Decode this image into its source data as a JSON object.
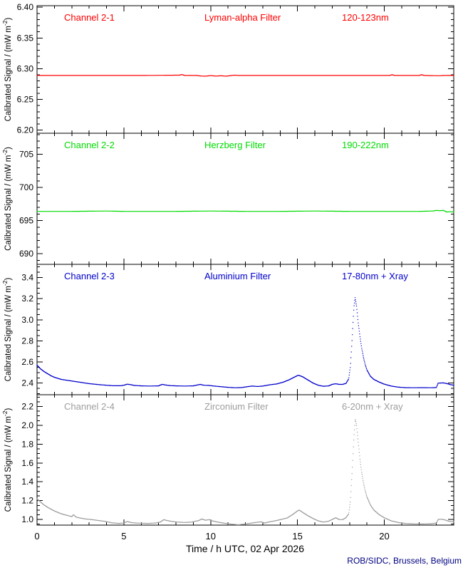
{
  "figure": {
    "footer": "ROB/SIDC, Brussels, Belgium",
    "footer_color": "#000080",
    "frame_color": "#000000",
    "y_axis_label": {
      "pre": "Calibrated Signal / (mW m",
      "sup": "-2",
      "post": ")"
    },
    "x_axis": {
      "title": "Time / h UTC, 02 Apr 2026",
      "min": 0,
      "max": 24,
      "minor_step": 1,
      "major_ticks": [
        0,
        5,
        10,
        15,
        20
      ],
      "tick_labels": [
        "0",
        "5",
        "10",
        "15",
        "20"
      ]
    }
  },
  "chart_data": [
    {
      "type": "line",
      "channel": "Channel 2-1",
      "filter": "Lyman-alpha Filter",
      "band": "120-123nm",
      "color": "#ff0000",
      "ylim": [
        6.195,
        6.4025
      ],
      "y_minor_step": 0.01,
      "y_ticks": [
        {
          "v": 6.2,
          "label": "6.20"
        },
        {
          "v": 6.25,
          "label": "6.25"
        },
        {
          "v": 6.3,
          "label": "6.30"
        },
        {
          "v": 6.35,
          "label": "6.35"
        },
        {
          "v": 6.4,
          "label": "6.40"
        }
      ],
      "points": [
        [
          0,
          6.289
        ],
        [
          3,
          6.289
        ],
        [
          6,
          6.289
        ],
        [
          8.2,
          6.2895
        ],
        [
          8.35,
          6.2905
        ],
        [
          8.5,
          6.289
        ],
        [
          9.2,
          6.289
        ],
        [
          9.4,
          6.2882
        ],
        [
          9.7,
          6.2878
        ],
        [
          10.0,
          6.2888
        ],
        [
          10.3,
          6.288
        ],
        [
          10.6,
          6.2885
        ],
        [
          10.9,
          6.2878
        ],
        [
          11.2,
          6.289
        ],
        [
          11.4,
          6.2895
        ],
        [
          11.6,
          6.289
        ],
        [
          13,
          6.289
        ],
        [
          15,
          6.289
        ],
        [
          17,
          6.289
        ],
        [
          19,
          6.289
        ],
        [
          20.3,
          6.289
        ],
        [
          20.45,
          6.2902
        ],
        [
          20.6,
          6.289
        ],
        [
          22.0,
          6.289
        ],
        [
          22.15,
          6.2902
        ],
        [
          22.3,
          6.289
        ],
        [
          23.2,
          6.2885
        ],
        [
          23.4,
          6.289
        ],
        [
          24,
          6.289
        ]
      ]
    },
    {
      "type": "line",
      "channel": "Channel 2-2",
      "filter": "Herzberg Filter",
      "band": "190-222nm",
      "color": "#00dc00",
      "ylim": [
        688.4,
        708.2
      ],
      "y_minor_step": 1,
      "y_ticks": [
        {
          "v": 690,
          "label": "690"
        },
        {
          "v": 695,
          "label": "695"
        },
        {
          "v": 700,
          "label": "700"
        },
        {
          "v": 705,
          "label": "705"
        }
      ],
      "points": [
        [
          0,
          696.4
        ],
        [
          2,
          696.4
        ],
        [
          4,
          696.45
        ],
        [
          5,
          696.4
        ],
        [
          8,
          696.4
        ],
        [
          10,
          696.45
        ],
        [
          12,
          696.4
        ],
        [
          14,
          696.4
        ],
        [
          16,
          696.45
        ],
        [
          18,
          696.4
        ],
        [
          20,
          696.4
        ],
        [
          22,
          696.4
        ],
        [
          22.8,
          696.45
        ],
        [
          23.0,
          696.55
        ],
        [
          23.2,
          696.5
        ],
        [
          23.4,
          696.55
        ],
        [
          23.6,
          696.3
        ],
        [
          23.8,
          696.35
        ],
        [
          24,
          696.3
        ]
      ]
    },
    {
      "type": "line",
      "channel": "Channel 2-3",
      "filter": "Aluminium Filter",
      "band": "17-80nm + Xray",
      "color": "#0000cc",
      "ylim": [
        2.29,
        3.525
      ],
      "y_minor_step": 0.05,
      "y_ticks": [
        {
          "v": 2.4,
          "label": "2.4"
        },
        {
          "v": 2.6,
          "label": "2.6"
        },
        {
          "v": 2.8,
          "label": "2.8"
        },
        {
          "v": 3.0,
          "label": "3.0"
        },
        {
          "v": 3.2,
          "label": "3.2"
        },
        {
          "v": 3.4,
          "label": "3.4"
        }
      ],
      "points": [
        [
          0,
          2.57
        ],
        [
          0.2,
          2.535
        ],
        [
          0.4,
          2.51
        ],
        [
          0.6,
          2.49
        ],
        [
          0.8,
          2.47
        ],
        [
          1.0,
          2.455
        ],
        [
          1.2,
          2.445
        ],
        [
          1.4,
          2.435
        ],
        [
          1.6,
          2.43
        ],
        [
          1.8,
          2.425
        ],
        [
          2.0,
          2.42
        ],
        [
          2.2,
          2.415
        ],
        [
          2.4,
          2.41
        ],
        [
          2.6,
          2.405
        ],
        [
          2.8,
          2.4
        ],
        [
          3.0,
          2.395
        ],
        [
          3.3,
          2.39
        ],
        [
          3.6,
          2.385
        ],
        [
          4.0,
          2.38
        ],
        [
          4.4,
          2.375
        ],
        [
          4.8,
          2.375
        ],
        [
          5.0,
          2.38
        ],
        [
          5.2,
          2.39
        ],
        [
          5.4,
          2.385
        ],
        [
          5.6,
          2.378
        ],
        [
          6.0,
          2.374
        ],
        [
          6.5,
          2.372
        ],
        [
          7.0,
          2.374
        ],
        [
          7.2,
          2.388
        ],
        [
          7.4,
          2.382
        ],
        [
          7.7,
          2.376
        ],
        [
          8.0,
          2.374
        ],
        [
          8.5,
          2.372
        ],
        [
          9.0,
          2.374
        ],
        [
          9.4,
          2.388
        ],
        [
          9.6,
          2.38
        ],
        [
          9.9,
          2.378
        ],
        [
          10.2,
          2.372
        ],
        [
          10.6,
          2.366
        ],
        [
          11.0,
          2.36
        ],
        [
          11.4,
          2.356
        ],
        [
          11.8,
          2.358
        ],
        [
          12.1,
          2.366
        ],
        [
          12.4,
          2.372
        ],
        [
          12.7,
          2.368
        ],
        [
          13.0,
          2.372
        ],
        [
          13.4,
          2.384
        ],
        [
          13.8,
          2.392
        ],
        [
          14.2,
          2.41
        ],
        [
          14.5,
          2.43
        ],
        [
          14.8,
          2.455
        ],
        [
          15.05,
          2.475
        ],
        [
          15.3,
          2.46
        ],
        [
          15.6,
          2.43
        ],
        [
          15.9,
          2.4
        ],
        [
          16.2,
          2.38
        ],
        [
          16.5,
          2.37
        ],
        [
          16.8,
          2.374
        ],
        [
          17.0,
          2.388
        ],
        [
          17.2,
          2.394
        ],
        [
          17.4,
          2.388
        ],
        [
          17.6,
          2.388
        ],
        [
          17.8,
          2.398
        ],
        [
          17.95,
          2.44
        ],
        [
          18.05,
          2.56
        ],
        [
          18.15,
          2.83
        ],
        [
          18.25,
          3.12
        ],
        [
          18.32,
          3.21
        ],
        [
          18.4,
          3.13
        ],
        [
          18.5,
          2.97
        ],
        [
          18.6,
          2.84
        ],
        [
          18.7,
          2.73
        ],
        [
          18.8,
          2.645
        ],
        [
          18.9,
          2.575
        ],
        [
          19.0,
          2.525
        ],
        [
          19.2,
          2.465
        ],
        [
          19.4,
          2.435
        ],
        [
          19.7,
          2.41
        ],
        [
          20.0,
          2.39
        ],
        [
          20.4,
          2.372
        ],
        [
          20.8,
          2.362
        ],
        [
          21.2,
          2.357
        ],
        [
          21.7,
          2.356
        ],
        [
          22.2,
          2.357
        ],
        [
          22.7,
          2.356
        ],
        [
          23.0,
          2.358
        ],
        [
          23.1,
          2.4
        ],
        [
          23.4,
          2.402
        ],
        [
          23.6,
          2.396
        ],
        [
          23.8,
          2.386
        ],
        [
          24,
          2.38
        ]
      ]
    },
    {
      "type": "line",
      "channel": "Channel 2-4",
      "filter": "Zirconium Filter",
      "band": "6-20nm + Xray",
      "color": "#9e9e9e",
      "ylim": [
        0.94,
        2.325
      ],
      "y_minor_step": 0.05,
      "y_ticks": [
        {
          "v": 1.0,
          "label": "1.0"
        },
        {
          "v": 1.2,
          "label": "1.2"
        },
        {
          "v": 1.4,
          "label": "1.4"
        },
        {
          "v": 1.6,
          "label": "1.6"
        },
        {
          "v": 1.8,
          "label": "1.8"
        },
        {
          "v": 2.0,
          "label": "2.0"
        },
        {
          "v": 2.2,
          "label": "2.2"
        }
      ],
      "points": [
        [
          0,
          1.22
        ],
        [
          0.2,
          1.185
        ],
        [
          0.4,
          1.155
        ],
        [
          0.6,
          1.13
        ],
        [
          0.8,
          1.11
        ],
        [
          1.0,
          1.09
        ],
        [
          1.2,
          1.075
        ],
        [
          1.4,
          1.06
        ],
        [
          1.6,
          1.05
        ],
        [
          1.8,
          1.04
        ],
        [
          2.0,
          1.03
        ],
        [
          2.1,
          1.05
        ],
        [
          2.25,
          1.025
        ],
        [
          2.5,
          1.015
        ],
        [
          2.8,
          1.005
        ],
        [
          3.1,
          1.0
        ],
        [
          3.5,
          0.99
        ],
        [
          3.9,
          0.98
        ],
        [
          4.3,
          0.965
        ],
        [
          4.7,
          0.958
        ],
        [
          5.0,
          0.962
        ],
        [
          5.2,
          0.978
        ],
        [
          5.4,
          0.968
        ],
        [
          5.7,
          0.962
        ],
        [
          6.0,
          0.96
        ],
        [
          6.4,
          0.958
        ],
        [
          6.8,
          0.962
        ],
        [
          7.1,
          0.972
        ],
        [
          7.3,
          0.998
        ],
        [
          7.5,
          0.988
        ],
        [
          7.8,
          0.978
        ],
        [
          8.1,
          0.972
        ],
        [
          8.5,
          0.968
        ],
        [
          8.9,
          0.972
        ],
        [
          9.3,
          0.988
        ],
        [
          9.5,
          1.005
        ],
        [
          9.7,
          0.992
        ],
        [
          9.9,
          0.998
        ],
        [
          10.1,
          0.985
        ],
        [
          10.4,
          0.972
        ],
        [
          10.8,
          0.96
        ],
        [
          11.2,
          0.95
        ],
        [
          11.6,
          0.944
        ],
        [
          12.0,
          0.952
        ],
        [
          12.3,
          0.96
        ],
        [
          12.6,
          0.968
        ],
        [
          12.9,
          0.975
        ],
        [
          13.1,
          0.962
        ],
        [
          13.4,
          0.975
        ],
        [
          13.7,
          0.985
        ],
        [
          14.0,
          0.998
        ],
        [
          14.4,
          1.015
        ],
        [
          14.7,
          1.05
        ],
        [
          15.0,
          1.09
        ],
        [
          15.1,
          1.1
        ],
        [
          15.3,
          1.075
        ],
        [
          15.6,
          1.04
        ],
        [
          15.9,
          1.01
        ],
        [
          16.2,
          0.985
        ],
        [
          16.5,
          0.972
        ],
        [
          16.8,
          0.982
        ],
        [
          17.0,
          1.0
        ],
        [
          17.2,
          1.018
        ],
        [
          17.4,
          1.0
        ],
        [
          17.6,
          0.998
        ],
        [
          17.8,
          1.02
        ],
        [
          17.95,
          1.06
        ],
        [
          18.05,
          1.2
        ],
        [
          18.15,
          1.52
        ],
        [
          18.25,
          1.88
        ],
        [
          18.33,
          2.07
        ],
        [
          18.4,
          2.0
        ],
        [
          18.5,
          1.82
        ],
        [
          18.6,
          1.64
        ],
        [
          18.7,
          1.5
        ],
        [
          18.8,
          1.39
        ],
        [
          18.9,
          1.305
        ],
        [
          19.0,
          1.24
        ],
        [
          19.2,
          1.155
        ],
        [
          19.4,
          1.1
        ],
        [
          19.7,
          1.052
        ],
        [
          20.0,
          1.018
        ],
        [
          20.4,
          0.985
        ],
        [
          20.8,
          0.968
        ],
        [
          21.2,
          0.958
        ],
        [
          21.7,
          0.953
        ],
        [
          22.2,
          0.952
        ],
        [
          22.7,
          0.955
        ],
        [
          23.0,
          0.962
        ],
        [
          23.1,
          1.0
        ],
        [
          23.3,
          1.003
        ],
        [
          23.5,
          0.995
        ],
        [
          23.7,
          0.982
        ],
        [
          24,
          0.975
        ]
      ]
    }
  ]
}
